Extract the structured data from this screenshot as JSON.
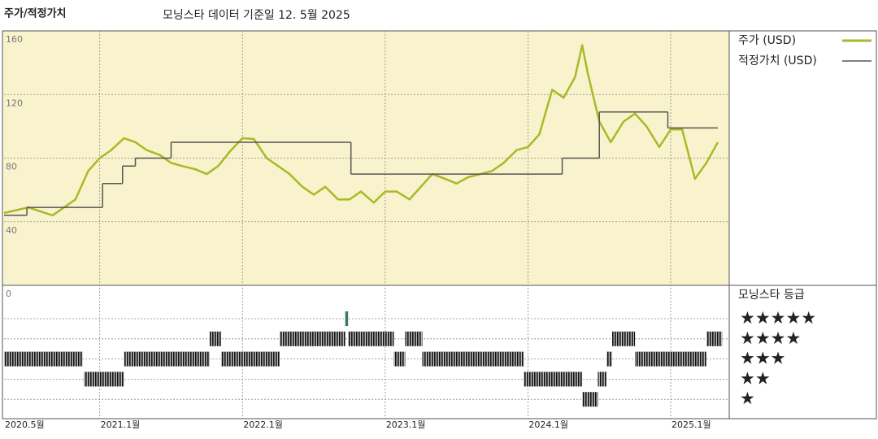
{
  "header": {
    "title": "주가/적정가치",
    "subtitle": "모닝스타 데이터 기준일 12. 5월 2025"
  },
  "chart_data": {
    "type": "line",
    "xlim": [
      2020.33,
      2025.41
    ],
    "xticks": [
      {
        "value": 2020.33,
        "label": "2020.5월"
      },
      {
        "value": 2021.0,
        "label": "2021.1월"
      },
      {
        "value": 2022.0,
        "label": "2022.1월"
      },
      {
        "value": 2023.0,
        "label": "2023.1월"
      },
      {
        "value": 2024.0,
        "label": "2024.1월"
      },
      {
        "value": 2025.0,
        "label": "2025.1월"
      }
    ],
    "ylim": [
      0,
      160
    ],
    "yticks": [
      0,
      40,
      80,
      120,
      160
    ],
    "grid": true,
    "x": [
      2020.33,
      2020.5,
      2020.67,
      2020.83,
      2020.92,
      2021.0,
      2021.08,
      2021.17,
      2021.25,
      2021.33,
      2021.42,
      2021.5,
      2021.58,
      2021.67,
      2021.75,
      2021.83,
      2021.92,
      2022.0,
      2022.08,
      2022.17,
      2022.25,
      2022.33,
      2022.42,
      2022.5,
      2022.58,
      2022.67,
      2022.75,
      2022.83,
      2022.92,
      2023.0,
      2023.08,
      2023.17,
      2023.25,
      2023.33,
      2023.42,
      2023.5,
      2023.58,
      2023.67,
      2023.75,
      2023.83,
      2023.92,
      2024.0,
      2024.08,
      2024.17,
      2024.25,
      2024.33,
      2024.38,
      2024.42,
      2024.5,
      2024.58,
      2024.67,
      2024.75,
      2024.83,
      2024.92,
      2025.0,
      2025.08,
      2025.17,
      2025.25,
      2025.33
    ],
    "series": [
      {
        "name": "주가 (USD)",
        "color": "#a9b928",
        "values": [
          45.5,
          49,
          44,
          54,
          72,
          80,
          85,
          92.5,
          90,
          85,
          82,
          77,
          75,
          73,
          70,
          75,
          85,
          92.5,
          92,
          80,
          75,
          70,
          62,
          57,
          62,
          54,
          54,
          59,
          52,
          59,
          59,
          54,
          62,
          70,
          67,
          64,
          68,
          70,
          72,
          77,
          85,
          87,
          95,
          123,
          118,
          131,
          151,
          133,
          103,
          90,
          103,
          108,
          100,
          87,
          98,
          98,
          67,
          77,
          90
        ]
      },
      {
        "name": "적정가치 (USD)",
        "color": "#555555",
        "x": [
          2020.33,
          2020.49,
          2021.02,
          2021.16,
          2021.25,
          2021.5,
          2022.76,
          2024.24,
          2024.5,
          2024.98
        ],
        "values": [
          44,
          49,
          64,
          75,
          80,
          90,
          70,
          80,
          109,
          99
        ]
      }
    ],
    "ratings": {
      "title": "모닝스타 등급",
      "levels": [
        "★★★★★",
        "★★★★",
        "★★★",
        "★★",
        "★"
      ],
      "starts": [
        2020.33,
        2020.89,
        2021.17,
        2021.77,
        2021.85,
        2022.26,
        2022.72,
        2022.74,
        2023.06,
        2023.14,
        2023.26,
        2023.97,
        2024.38,
        2024.49,
        2024.55,
        2024.59,
        2024.75,
        2025.25
      ],
      "ends": [
        2020.88,
        2021.17,
        2021.77,
        2021.85,
        2022.26,
        2022.72,
        2022.74,
        2023.06,
        2023.14,
        2023.26,
        2023.97,
        2024.38,
        2024.49,
        2024.55,
        2024.59,
        2024.75,
        2025.25,
        2025.36
      ],
      "stars": [
        3,
        2,
        3,
        4,
        3,
        4,
        5,
        4,
        3,
        4,
        3,
        2,
        1,
        2,
        3,
        4,
        3,
        4
      ]
    }
  }
}
